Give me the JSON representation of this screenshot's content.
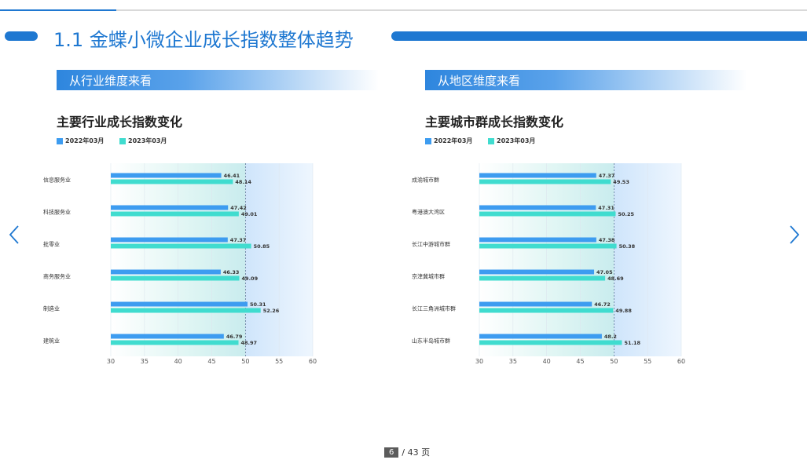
{
  "header": {
    "title": "1.1 金蝶小微企业成长指数整体趋势"
  },
  "colors": {
    "accent": "#1f78d1",
    "series_2022": "#3d9cf0",
    "series_2023": "#40dccf"
  },
  "left_panel": {
    "section_label": "从行业维度来看",
    "chart_title": "主要行业成长指数变化",
    "legend": [
      "2022年03月",
      "2023年03月"
    ]
  },
  "right_panel": {
    "section_label": "从地区维度来看",
    "chart_title": "主要城市群成长指数变化",
    "legend": [
      "2022年03月",
      "2023年03月"
    ]
  },
  "chart_data": [
    {
      "type": "bar",
      "orientation": "horizontal",
      "title": "主要行业成长指数变化",
      "categories": [
        "信息服务业",
        "科技服务业",
        "批零业",
        "商务服务业",
        "制造业",
        "建筑业"
      ],
      "series": [
        {
          "name": "2022年03月",
          "values": [
            46.41,
            47.42,
            47.37,
            46.33,
            50.31,
            46.79
          ]
        },
        {
          "name": "2023年03月",
          "values": [
            48.14,
            49.01,
            50.85,
            49.09,
            52.26,
            48.97
          ]
        }
      ],
      "value_labels": [
        [
          "46.41",
          "47.42",
          "47.37",
          "46.33",
          "50.31",
          "46.79"
        ],
        [
          "48.14",
          "49.01",
          "50.85",
          "49.09",
          "52.26",
          "48.97"
        ]
      ],
      "xlim": [
        30,
        60
      ],
      "xticks": [
        30,
        35,
        40,
        45,
        50,
        55,
        60
      ],
      "reference_line": 50,
      "legend_position": "top-left",
      "grid": true
    },
    {
      "type": "bar",
      "orientation": "horizontal",
      "title": "主要城市群成长指数变化",
      "categories": [
        "成渝城市群",
        "粤港澳大湾区",
        "长江中游城市群",
        "京津冀城市群",
        "长江三角洲城市群",
        "山东半岛城市群"
      ],
      "series": [
        {
          "name": "2022年03月",
          "values": [
            47.37,
            47.31,
            47.38,
            47.05,
            46.72,
            48.2
          ]
        },
        {
          "name": "2023年03月",
          "values": [
            49.53,
            50.25,
            50.38,
            48.69,
            49.88,
            51.18
          ]
        }
      ],
      "value_labels": [
        [
          "47.37",
          "47.31",
          "47.38",
          "47.05",
          "46.72",
          "48.2"
        ],
        [
          "49.53",
          "50.25",
          "50.38",
          "48.69",
          "49.88",
          "51.18"
        ]
      ],
      "xlim": [
        30,
        60
      ],
      "xticks": [
        30,
        35,
        40,
        45,
        50,
        55,
        60
      ],
      "reference_line": 50,
      "legend_position": "top-left",
      "grid": true
    }
  ],
  "pager": {
    "current": "6",
    "total": "/ 43 页"
  }
}
